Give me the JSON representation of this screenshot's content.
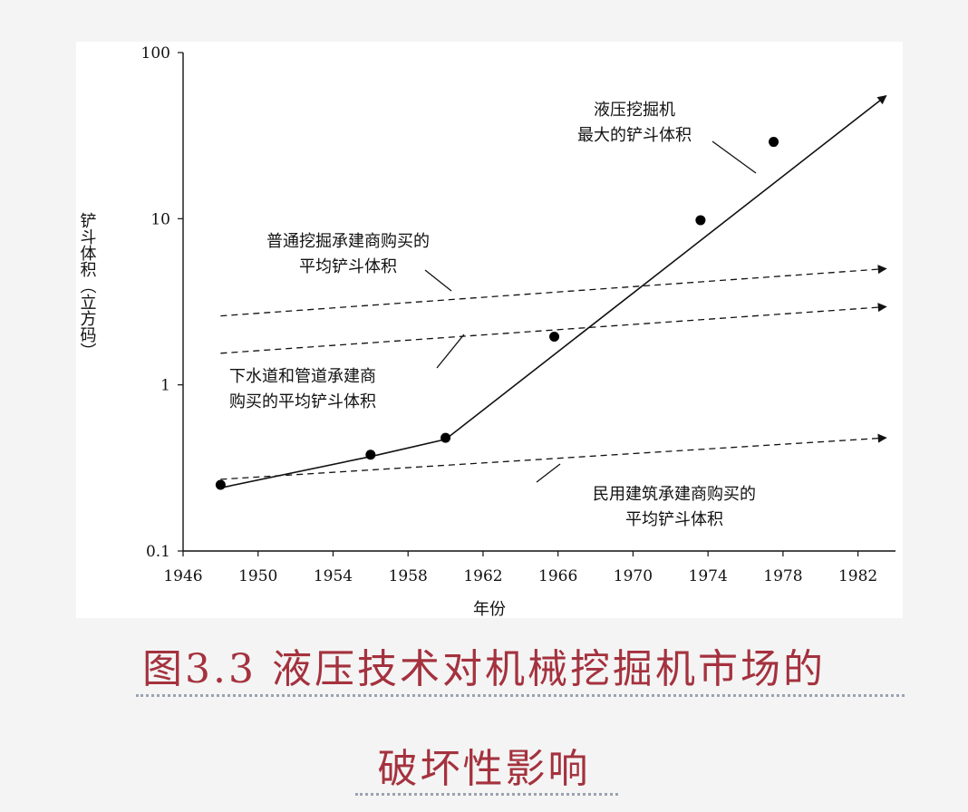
{
  "chart_data": {
    "type": "line",
    "xlabel": "年份",
    "ylabel": "铲斗体积（立方码）",
    "y_scale": "log",
    "xlim": [
      1946,
      1984
    ],
    "ylim": [
      0.1,
      100
    ],
    "x_ticks": [
      "1946",
      "1950",
      "1954",
      "1958",
      "1962",
      "1966",
      "1970",
      "1974",
      "1978",
      "1982"
    ],
    "y_ticks": [
      "100",
      "10",
      "1",
      "0.1"
    ],
    "series": [
      {
        "name": "液压挖掘机最大的铲斗体积",
        "style": "solid",
        "line": [
          [
            1948,
            0.24
          ],
          [
            1956,
            0.37
          ],
          [
            1960,
            0.47
          ],
          [
            1983.5,
            55
          ]
        ],
        "points": [
          [
            1948,
            0.25
          ],
          [
            1956,
            0.38
          ],
          [
            1960,
            0.48
          ],
          [
            1965.8,
            1.95
          ],
          [
            1973.6,
            9.8
          ],
          [
            1977.5,
            29
          ]
        ]
      },
      {
        "name": "普通挖掘承建商购买的平均铲斗体积",
        "style": "dashed",
        "line": [
          [
            1948,
            2.6
          ],
          [
            1983.5,
            5.0
          ]
        ]
      },
      {
        "name": "下水道和管道承建商购买的平均铲斗体积",
        "style": "dashed",
        "line": [
          [
            1948,
            1.55
          ],
          [
            1983.5,
            2.95
          ]
        ]
      },
      {
        "name": "民用建筑承建商购买的平均铲斗体积",
        "style": "dashed",
        "line": [
          [
            1948,
            0.27
          ],
          [
            1983.5,
            0.48
          ]
        ]
      }
    ],
    "annotations": [
      {
        "lines": [
          "液压挖掘机",
          "最大的铲斗体积"
        ]
      },
      {
        "lines": [
          "普通挖掘承建商购买的",
          "平均铲斗体积"
        ]
      },
      {
        "lines": [
          "下水道和管道承建商",
          "购买的平均铲斗体积"
        ]
      },
      {
        "lines": [
          "民用建筑承建商购买的",
          "平均铲斗体积"
        ]
      }
    ]
  },
  "caption": {
    "line1": "图3.3 液压技术对机械挖掘机市场的",
    "line2": "破坏性影响"
  }
}
